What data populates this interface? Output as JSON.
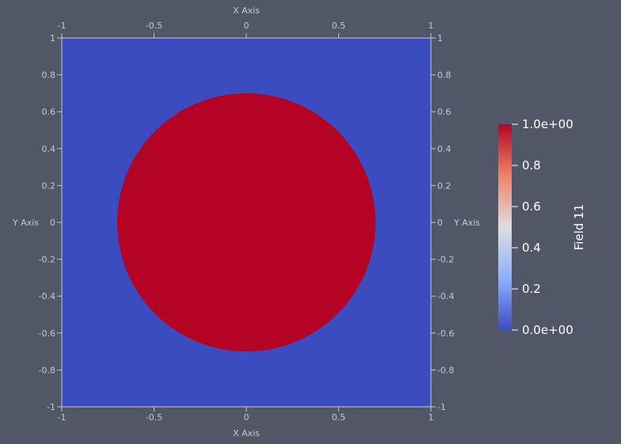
{
  "view": {
    "background": "#525767",
    "field_low_color": "#3b4cc0",
    "field_high_color": "#b40426"
  },
  "dataset": {
    "shape": "disk",
    "center": [
      0,
      0
    ],
    "radius": 0.7,
    "domain_x": [
      -1,
      1
    ],
    "domain_y": [
      -1,
      1
    ],
    "inside_value": 1,
    "outside_value": 0
  },
  "axes": {
    "x_title_top": "X Axis",
    "x_title_bottom": "X Axis",
    "y_title_left": "Y Axis",
    "y_title_right": "Y Axis",
    "x_ticks": [
      {
        "value": -1,
        "label": "-1"
      },
      {
        "value": -0.5,
        "label": "-0.5"
      },
      {
        "value": 0,
        "label": "0"
      },
      {
        "value": 0.5,
        "label": "0.5"
      },
      {
        "value": 1,
        "label": "1"
      }
    ],
    "y_ticks": [
      {
        "value": 1,
        "label": "1"
      },
      {
        "value": 0.8,
        "label": "0.8"
      },
      {
        "value": 0.6,
        "label": "0.6"
      },
      {
        "value": 0.4,
        "label": "0.4"
      },
      {
        "value": 0.2,
        "label": "0.2"
      },
      {
        "value": 0,
        "label": "0"
      },
      {
        "value": -0.2,
        "label": "-0.2"
      },
      {
        "value": -0.4,
        "label": "-0.4"
      },
      {
        "value": -0.6,
        "label": "-0.6"
      },
      {
        "value": -0.8,
        "label": "-0.8"
      },
      {
        "value": -1,
        "label": "-1"
      }
    ]
  },
  "scalar_bar": {
    "title": "Field 11",
    "range": [
      0,
      1
    ],
    "colormap": "Cool to Warm",
    "ticks": [
      {
        "value": 1,
        "label": "1.0e+00"
      },
      {
        "value": 0.8,
        "label": "0.8"
      },
      {
        "value": 0.6,
        "label": "0.6"
      },
      {
        "value": 0.4,
        "label": "0.4"
      },
      {
        "value": 0.2,
        "label": "0.2"
      },
      {
        "value": 0,
        "label": "0.0e+00"
      }
    ],
    "gradient_stops": [
      {
        "offset": 0,
        "color": "#b40426"
      },
      {
        "offset": 0.25,
        "color": "#ee8468"
      },
      {
        "offset": 0.5,
        "color": "#dddddd"
      },
      {
        "offset": 0.75,
        "color": "#8db0fe"
      },
      {
        "offset": 1,
        "color": "#3b4cc0"
      }
    ]
  }
}
